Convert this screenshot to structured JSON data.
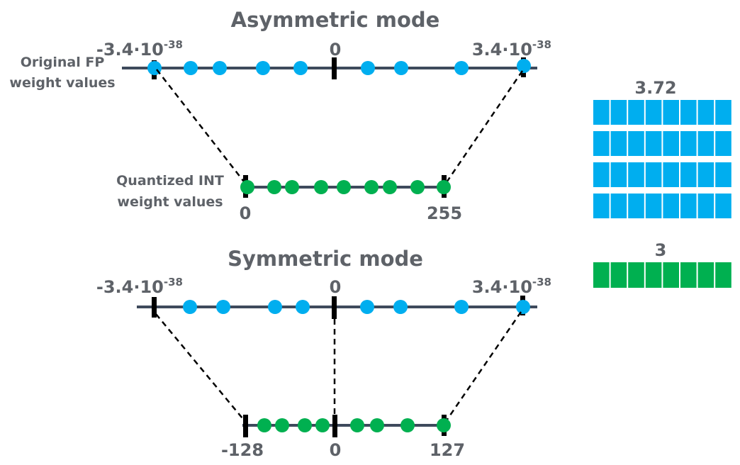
{
  "colors": {
    "axis": "#3e4a5c",
    "fp_dot": "#00aeef",
    "int_dot": "#00b050",
    "text": "#5e6268",
    "marker": "#000000"
  },
  "asymmetric": {
    "title": "Asymmetric mode",
    "fp_side_label_1": "Original FP",
    "fp_side_label_2": "weight values",
    "int_side_label_1": "Quantized INT",
    "int_side_label_2": "weight values",
    "fp_min_base": "-3.4·10",
    "fp_min_exp": "-38",
    "fp_zero": "0",
    "fp_max_base": "3.4·10",
    "fp_max_exp": "-38",
    "int_min": "0",
    "int_max": "255"
  },
  "symmetric": {
    "title": "Symmetric mode",
    "fp_min_base": "-3.4·10",
    "fp_min_exp": "-38",
    "fp_zero": "0",
    "fp_max_base": "3.4·10",
    "fp_max_exp": "-38",
    "int_min": "-128",
    "int_zero": "0",
    "int_max": "127"
  },
  "bit_blocks": {
    "fp_label": "3.72",
    "fp_rows": 4,
    "fp_bits_per_row": 8,
    "int_label": "3",
    "int_rows": 1,
    "int_bits_per_row": 8
  }
}
